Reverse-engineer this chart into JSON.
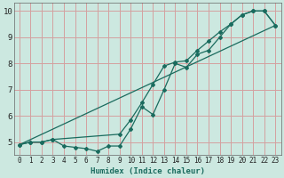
{
  "xlabel": "Humidex (Indice chaleur)",
  "bg_color": "#cce8e0",
  "plot_bg_color": "#cce8e0",
  "grid_color": "#d4a0a0",
  "line_color": "#1a6b5e",
  "xlim": [
    -0.5,
    23.5
  ],
  "ylim": [
    4.5,
    10.3
  ],
  "xtick_vals": [
    0,
    1,
    2,
    3,
    4,
    5,
    6,
    7,
    8,
    9,
    10,
    11,
    12,
    13,
    14,
    15,
    16,
    17,
    18,
    19,
    20,
    21,
    22,
    23
  ],
  "ytick_vals": [
    5,
    6,
    7,
    8,
    9,
    10
  ],
  "line1_x": [
    0,
    1,
    2,
    3,
    4,
    5,
    6,
    7,
    8,
    9,
    10,
    11,
    12,
    13,
    14,
    15,
    16,
    17,
    18,
    19,
    20,
    21,
    22,
    23
  ],
  "line1_y": [
    4.9,
    5.0,
    5.0,
    5.1,
    4.85,
    4.8,
    4.75,
    4.65,
    4.85,
    4.85,
    5.5,
    6.35,
    6.05,
    7.0,
    8.0,
    7.85,
    8.35,
    8.5,
    9.0,
    9.5,
    9.85,
    10.0,
    10.0,
    9.45
  ],
  "line2_x": [
    0,
    1,
    2,
    3,
    9,
    10,
    11,
    12,
    13,
    14,
    15,
    16,
    17,
    18,
    19,
    20,
    21,
    22,
    23
  ],
  "line2_y": [
    4.9,
    5.0,
    5.0,
    5.1,
    5.3,
    5.85,
    6.5,
    7.2,
    7.9,
    8.05,
    8.1,
    8.5,
    8.85,
    9.2,
    9.5,
    9.85,
    10.0,
    10.0,
    9.45
  ],
  "line3_x": [
    0,
    23
  ],
  "line3_y": [
    4.9,
    9.45
  ],
  "marker": "D",
  "markersize": 2.0,
  "linewidth": 0.9,
  "xlabel_fontsize": 6.5,
  "tick_fontsize": 5.5,
  "ytick_fontsize": 6.5
}
